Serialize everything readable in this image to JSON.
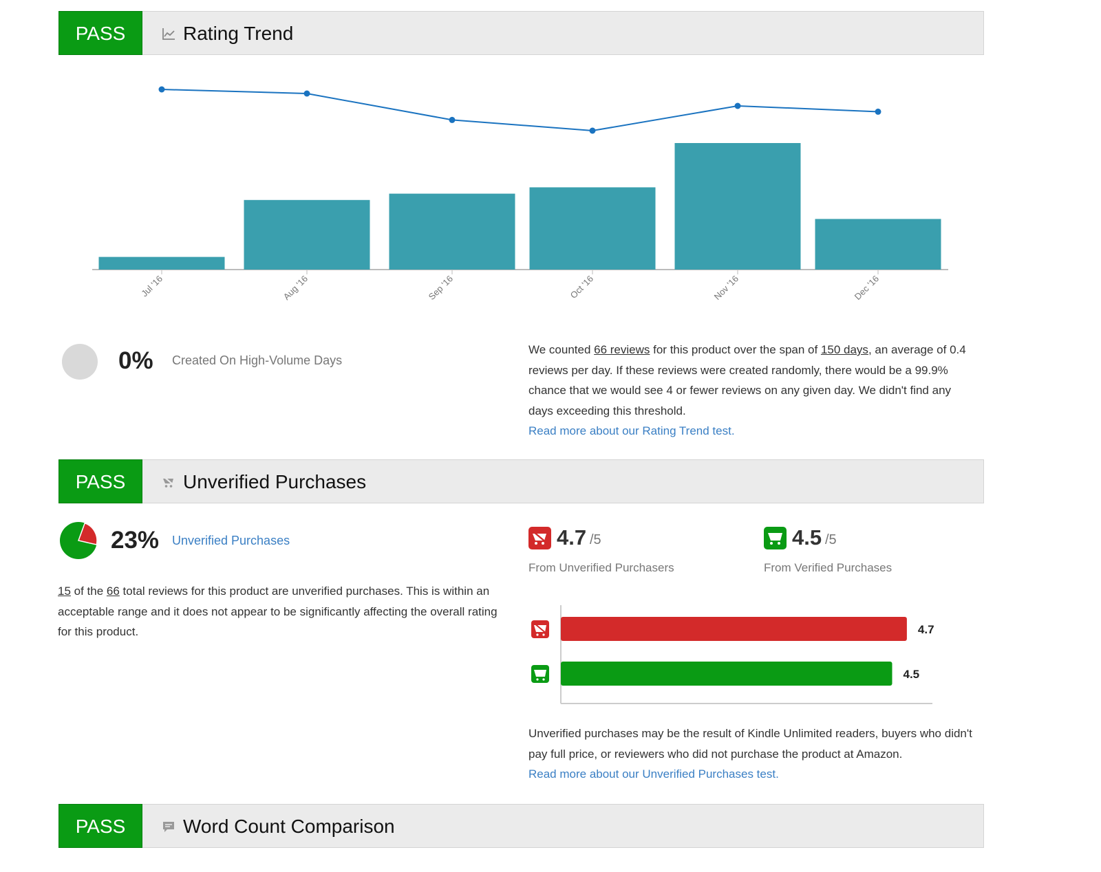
{
  "sections": {
    "rating_trend": {
      "status": "PASS",
      "title": "Rating Trend",
      "icon": "line-chart-icon"
    },
    "unverified": {
      "status": "PASS",
      "title": "Unverified Purchases",
      "icon": "cart-cancel-icon"
    },
    "word_count": {
      "status": "PASS",
      "title": "Word Count Comparison",
      "icon": "comment-icon"
    }
  },
  "chart_data": {
    "type": "bar",
    "categories": [
      "Jul '16",
      "Aug '16",
      "Sep '16",
      "Oct '16",
      "Nov '16",
      "Dec '16"
    ],
    "series": [
      {
        "kind": "bar",
        "values": [
          2,
          11,
          12,
          13,
          20,
          8
        ],
        "color": "#3a9fae"
      },
      {
        "kind": "line",
        "values": [
          5.0,
          4.95,
          4.63,
          4.5,
          4.8,
          4.73
        ],
        "color": "#1a73c0"
      }
    ],
    "bar_ylim": [
      0,
      20
    ],
    "line_ylim": [
      4.5,
      5.0
    ],
    "title": "",
    "xlabel": "",
    "ylabel": "",
    "grid": false
  },
  "high_volume": {
    "percent": "0%",
    "label": "Created On High-Volume Days",
    "text_1": "We counted ",
    "reviews_link": "66 reviews",
    "text_2": " for this product over the span of ",
    "days_link": "150 days",
    "text_3": ", an average of 0.4 reviews per day. If these reviews were created randomly, there would be a 99.9% chance that we would see 4 or fewer reviews on any given day. We didn't find any days exceeding this threshold.",
    "read_more": "Read more about our Rating Trend test."
  },
  "unverified_stats": {
    "percent": "23%",
    "percent_value": 0.23,
    "label": "Unverified Purchases",
    "count": "15",
    "text_1": " of the ",
    "total": "66",
    "text_2": " total reviews for this product are unverified purchases. This is within an acceptable range and it does not appear to be significantly affecting the overall rating for this product.",
    "unverified_rating": "4.7",
    "verified_rating": "4.5",
    "out_of": "/5",
    "unverified_caption": "From Unverified Purchasers",
    "verified_caption": "From Verified Purchases",
    "bar_chart": {
      "type": "bar",
      "values": [
        4.7,
        4.5
      ],
      "xlim": [
        0,
        5
      ],
      "colors": [
        "#d32a2a",
        "#0a9b14"
      ],
      "labels": [
        "4.7",
        "4.5"
      ]
    },
    "note": "Unverified purchases may be the result of Kindle Unlimited readers, buyers who didn't pay full price, or reviewers who did not purchase the product at Amazon.",
    "read_more": "Read more about our Unverified Purchases test."
  },
  "colors": {
    "pass": "#0a9b14",
    "unverified": "#d32a2a",
    "verified": "#0a9b14",
    "bar": "#3a9fae",
    "line": "#1a73c0",
    "link": "#3a7fc4"
  }
}
